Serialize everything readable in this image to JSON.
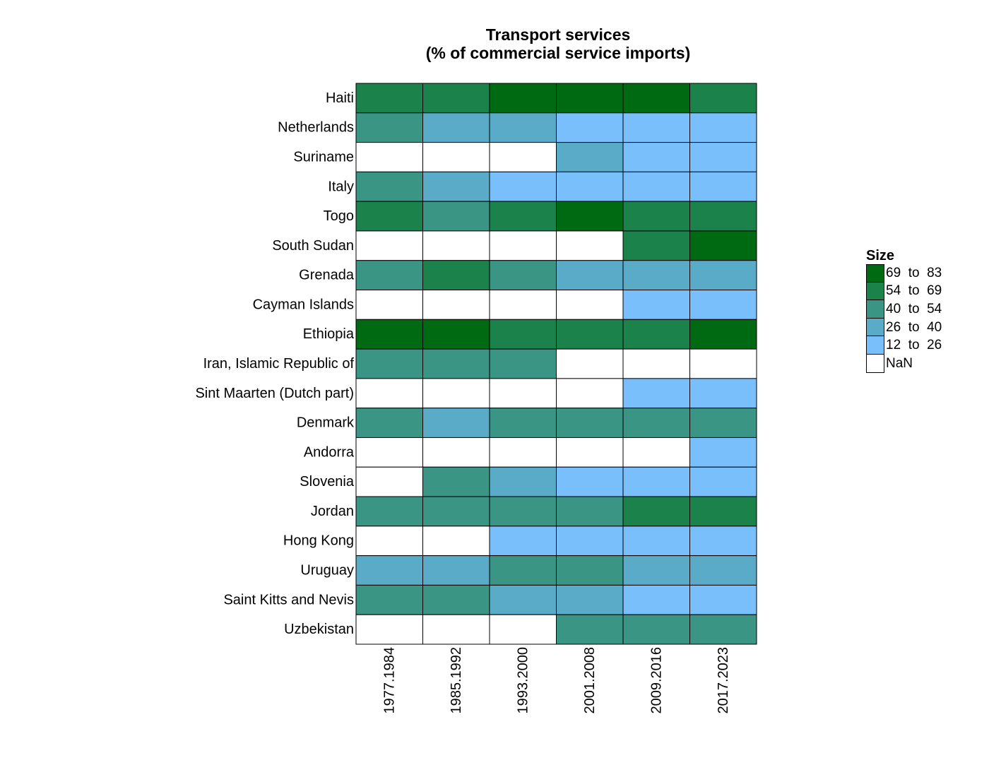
{
  "chart_data": {
    "type": "heatmap",
    "title_lines": [
      "Transport services",
      "(% of commercial service imports)"
    ],
    "x_categories": [
      "1977.1984",
      "1985.1992",
      "1993.2000",
      "2001.2008",
      "2009.2016",
      "2017.2023"
    ],
    "y_categories": [
      "Haiti",
      "Netherlands",
      "Suriname",
      "Italy",
      "Togo",
      "South Sudan",
      "Grenada",
      "Cayman Islands",
      "Ethiopia",
      "Iran, Islamic Republic of",
      "Sint Maarten (Dutch part)",
      "Denmark",
      "Andorra",
      "Slovenia",
      "Jordan",
      "Hong Kong",
      "Uruguay",
      "Saint Kitts and Nevis",
      "Uzbekistan"
    ],
    "bins": [
      {
        "label": "69  to  83",
        "color": "#006a13"
      },
      {
        "label": "54  to  69",
        "color": "#1b824b"
      },
      {
        "label": "40  to  54",
        "color": "#3a9585"
      },
      {
        "label": "26  to  40",
        "color": "#5aabc7"
      },
      {
        "label": "12  to  26",
        "color": "#78bffc"
      },
      {
        "label": "NaN",
        "color": "#ffffff"
      }
    ],
    "cells": [
      [
        "54  to  69",
        "54  to  69",
        "69  to  83",
        "69  to  83",
        "69  to  83",
        "54  to  69"
      ],
      [
        "40  to  54",
        "26  to  40",
        "26  to  40",
        "12  to  26",
        "12  to  26",
        "12  to  26"
      ],
      [
        "NaN",
        "NaN",
        "NaN",
        "26  to  40",
        "12  to  26",
        "12  to  26"
      ],
      [
        "40  to  54",
        "26  to  40",
        "12  to  26",
        "12  to  26",
        "12  to  26",
        "12  to  26"
      ],
      [
        "54  to  69",
        "40  to  54",
        "54  to  69",
        "69  to  83",
        "54  to  69",
        "54  to  69"
      ],
      [
        "NaN",
        "NaN",
        "NaN",
        "NaN",
        "54  to  69",
        "69  to  83"
      ],
      [
        "40  to  54",
        "54  to  69",
        "40  to  54",
        "26  to  40",
        "26  to  40",
        "26  to  40"
      ],
      [
        "NaN",
        "NaN",
        "NaN",
        "NaN",
        "12  to  26",
        "12  to  26"
      ],
      [
        "69  to  83",
        "69  to  83",
        "54  to  69",
        "54  to  69",
        "54  to  69",
        "69  to  83"
      ],
      [
        "40  to  54",
        "40  to  54",
        "40  to  54",
        "NaN",
        "NaN",
        "NaN"
      ],
      [
        "NaN",
        "NaN",
        "NaN",
        "NaN",
        "12  to  26",
        "12  to  26"
      ],
      [
        "40  to  54",
        "26  to  40",
        "40  to  54",
        "40  to  54",
        "40  to  54",
        "40  to  54"
      ],
      [
        "NaN",
        "NaN",
        "NaN",
        "NaN",
        "NaN",
        "12  to  26"
      ],
      [
        "NaN",
        "40  to  54",
        "26  to  40",
        "12  to  26",
        "12  to  26",
        "12  to  26"
      ],
      [
        "40  to  54",
        "40  to  54",
        "40  to  54",
        "40  to  54",
        "54  to  69",
        "54  to  69"
      ],
      [
        "NaN",
        "NaN",
        "12  to  26",
        "12  to  26",
        "12  to  26",
        "12  to  26"
      ],
      [
        "26  to  40",
        "26  to  40",
        "40  to  54",
        "40  to  54",
        "26  to  40",
        "26  to  40"
      ],
      [
        "40  to  54",
        "40  to  54",
        "26  to  40",
        "26  to  40",
        "12  to  26",
        "12  to  26"
      ],
      [
        "NaN",
        "NaN",
        "NaN",
        "40  to  54",
        "40  to  54",
        "40  to  54"
      ]
    ],
    "legend": {
      "title": "Size",
      "position": "right"
    },
    "grid": false
  }
}
